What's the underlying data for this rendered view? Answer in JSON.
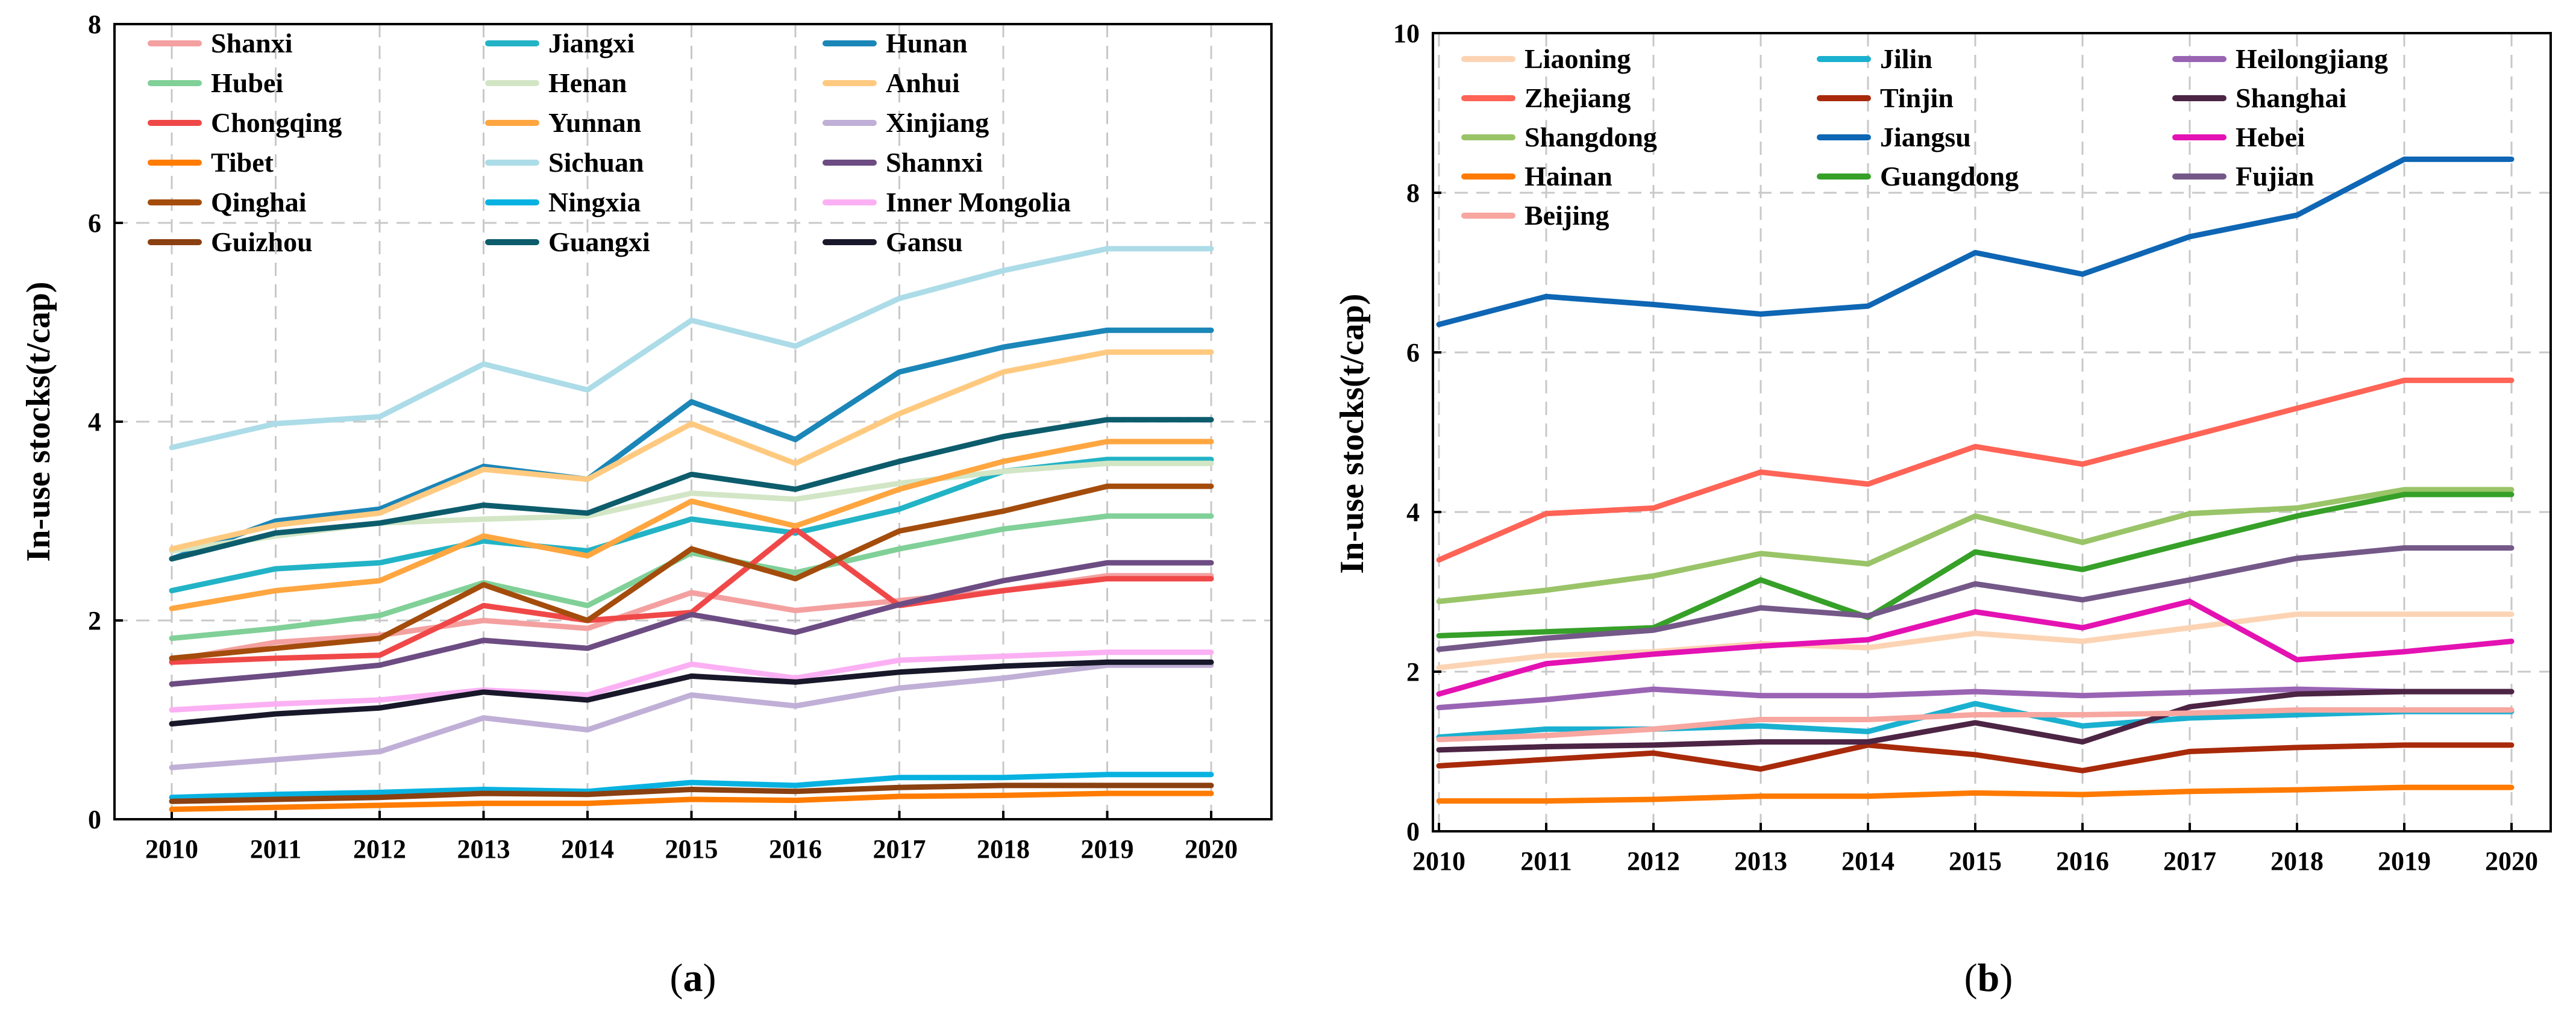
{
  "charts": [
    {
      "id": "a",
      "panel_label": "a",
      "ylabel": "In-use stocks(t/cap)",
      "ylim": [
        0,
        8
      ],
      "yticks": [
        "0",
        "2",
        "4",
        "6",
        "8"
      ],
      "categories": [
        "2010",
        "2011",
        "2012",
        "2013",
        "2014",
        "2015",
        "2016",
        "2017",
        "2018",
        "2019",
        "2020"
      ]
    },
    {
      "id": "b",
      "panel_label": "b",
      "ylabel": "In-use stocks(t/cap)",
      "ylim": [
        0,
        10
      ],
      "yticks": [
        "0",
        "2",
        "4",
        "6",
        "8",
        "10"
      ],
      "categories": [
        "2010",
        "2011",
        "2012",
        "2013",
        "2014",
        "2015",
        "2016",
        "2017",
        "2018",
        "2019",
        "2020"
      ]
    }
  ],
  "chart_data": [
    {
      "type": "line",
      "title": "",
      "xlabel": "",
      "ylabel": "In-use stocks(t/cap)",
      "ylim": [
        0,
        8
      ],
      "grid": true,
      "legend_position": "top-left",
      "x": [
        2010,
        2011,
        2012,
        2013,
        2014,
        2015,
        2016,
        2017,
        2018,
        2019,
        2020
      ],
      "series": [
        {
          "name": "Shanxi",
          "color": "#f4a0a0",
          "values": [
            1.6,
            1.78,
            1.85,
            2.0,
            1.92,
            2.28,
            2.1,
            2.2,
            2.3,
            2.45,
            2.45
          ]
        },
        {
          "name": "Jiangxi",
          "color": "#22b3c6",
          "values": [
            2.3,
            2.52,
            2.58,
            2.8,
            2.7,
            3.02,
            2.88,
            3.12,
            3.5,
            3.62,
            3.62
          ]
        },
        {
          "name": "Hunan",
          "color": "#1b86b8",
          "values": [
            2.62,
            3.0,
            3.12,
            3.55,
            3.42,
            4.2,
            3.82,
            4.5,
            4.75,
            4.92,
            4.92
          ]
        },
        {
          "name": "Hubei",
          "color": "#80d098",
          "values": [
            1.82,
            1.92,
            2.05,
            2.38,
            2.15,
            2.68,
            2.48,
            2.72,
            2.92,
            3.05,
            3.05
          ]
        },
        {
          "name": "Henan",
          "color": "#d2e6c6",
          "values": [
            2.7,
            2.85,
            2.98,
            3.02,
            3.05,
            3.28,
            3.22,
            3.38,
            3.5,
            3.58,
            3.58
          ]
        },
        {
          "name": "Anhui",
          "color": "#ffca80",
          "values": [
            2.72,
            2.96,
            3.08,
            3.52,
            3.42,
            3.98,
            3.58,
            4.08,
            4.5,
            4.7,
            4.7
          ]
        },
        {
          "name": "Chongqing",
          "color": "#f04848",
          "values": [
            1.58,
            1.62,
            1.65,
            2.15,
            2.0,
            2.08,
            2.92,
            2.15,
            2.3,
            2.42,
            2.42
          ]
        },
        {
          "name": "Yunnan",
          "color": "#ffa640",
          "values": [
            2.12,
            2.3,
            2.4,
            2.85,
            2.65,
            3.2,
            2.95,
            3.32,
            3.6,
            3.8,
            3.8
          ]
        },
        {
          "name": "Xinjiang",
          "color": "#c0afd6",
          "values": [
            0.52,
            0.6,
            0.68,
            1.02,
            0.9,
            1.25,
            1.14,
            1.32,
            1.42,
            1.55,
            1.55
          ]
        },
        {
          "name": "Tibet",
          "color": "#ff7c00",
          "values": [
            0.1,
            0.12,
            0.14,
            0.16,
            0.16,
            0.2,
            0.19,
            0.23,
            0.24,
            0.26,
            0.26
          ]
        },
        {
          "name": "Sichuan",
          "color": "#acdce8",
          "values": [
            3.74,
            3.98,
            4.05,
            4.58,
            4.32,
            5.02,
            4.76,
            5.24,
            5.52,
            5.74,
            5.74
          ]
        },
        {
          "name": "Shannxi",
          "color": "#6c4c82",
          "values": [
            1.36,
            1.45,
            1.55,
            1.8,
            1.72,
            2.06,
            1.88,
            2.16,
            2.4,
            2.58,
            2.58
          ]
        },
        {
          "name": "Qinghai",
          "color": "#a44c0c",
          "values": [
            1.62,
            1.72,
            1.82,
            2.36,
            2.0,
            2.72,
            2.42,
            2.9,
            3.1,
            3.35,
            3.35
          ]
        },
        {
          "name": "Ningxia",
          "color": "#08b2e0",
          "values": [
            0.22,
            0.25,
            0.27,
            0.3,
            0.28,
            0.37,
            0.34,
            0.42,
            0.42,
            0.45,
            0.45
          ]
        },
        {
          "name": "Inner Mongolia",
          "color": "#fcb0f4",
          "values": [
            1.1,
            1.16,
            1.2,
            1.3,
            1.25,
            1.56,
            1.42,
            1.6,
            1.64,
            1.68,
            1.68
          ]
        },
        {
          "name": "Guizhou",
          "color": "#8a4010",
          "values": [
            0.18,
            0.2,
            0.22,
            0.26,
            0.25,
            0.3,
            0.28,
            0.32,
            0.34,
            0.34,
            0.34
          ]
        },
        {
          "name": "Guangxi",
          "color": "#0c5c6c",
          "values": [
            2.62,
            2.88,
            2.98,
            3.16,
            3.08,
            3.47,
            3.32,
            3.6,
            3.85,
            4.02,
            4.02
          ]
        },
        {
          "name": "Gansu",
          "color": "#18182a",
          "values": [
            0.96,
            1.06,
            1.12,
            1.28,
            1.2,
            1.44,
            1.38,
            1.48,
            1.54,
            1.58,
            1.58
          ]
        }
      ]
    },
    {
      "type": "line",
      "title": "",
      "xlabel": "",
      "ylabel": "In-use stocks(t/cap)",
      "ylim": [
        0,
        10
      ],
      "grid": true,
      "legend_position": "top-left",
      "x": [
        2010,
        2011,
        2012,
        2013,
        2014,
        2015,
        2016,
        2017,
        2018,
        2019,
        2020
      ],
      "series": [
        {
          "name": "Liaoning",
          "color": "#fcd4b4",
          "values": [
            2.05,
            2.2,
            2.25,
            2.35,
            2.3,
            2.48,
            2.38,
            2.55,
            2.72,
            2.72,
            2.72
          ]
        },
        {
          "name": "Jilin",
          "color": "#1ab0d0",
          "values": [
            1.18,
            1.28,
            1.28,
            1.32,
            1.25,
            1.6,
            1.32,
            1.42,
            1.46,
            1.5,
            1.5
          ]
        },
        {
          "name": "Heilongjiang",
          "color": "#9a64b4",
          "values": [
            1.55,
            1.65,
            1.78,
            1.7,
            1.7,
            1.75,
            1.7,
            1.74,
            1.78,
            1.75,
            1.75
          ]
        },
        {
          "name": "Zhejiang",
          "color": "#ff6456",
          "values": [
            3.4,
            3.98,
            4.05,
            4.5,
            4.35,
            4.82,
            4.6,
            4.95,
            5.3,
            5.65,
            5.65
          ]
        },
        {
          "name": "Tinjin",
          "color": "#a82a0a",
          "values": [
            0.82,
            0.9,
            0.98,
            0.78,
            1.08,
            0.96,
            0.76,
            1.0,
            1.05,
            1.08,
            1.08
          ]
        },
        {
          "name": "Shanghai",
          "color": "#4c2444",
          "values": [
            1.02,
            1.06,
            1.08,
            1.12,
            1.12,
            1.36,
            1.12,
            1.56,
            1.72,
            1.75,
            1.75
          ]
        },
        {
          "name": "Shangdong",
          "color": "#9ac468",
          "values": [
            2.88,
            3.02,
            3.2,
            3.48,
            3.35,
            3.95,
            3.62,
            3.98,
            4.05,
            4.28,
            4.28
          ]
        },
        {
          "name": "Jiangsu",
          "color": "#0e66b4",
          "values": [
            6.35,
            6.7,
            6.6,
            6.48,
            6.58,
            7.25,
            6.98,
            7.45,
            7.72,
            8.42,
            8.42
          ]
        },
        {
          "name": "Hebei",
          "color": "#e412b2",
          "values": [
            1.72,
            2.1,
            2.22,
            2.32,
            2.4,
            2.75,
            2.55,
            2.88,
            2.15,
            2.25,
            2.38
          ]
        },
        {
          "name": "Hainan",
          "color": "#ff7a00",
          "values": [
            0.38,
            0.38,
            0.4,
            0.44,
            0.44,
            0.48,
            0.46,
            0.5,
            0.52,
            0.55,
            0.55
          ]
        },
        {
          "name": "Guangdong",
          "color": "#36a028",
          "values": [
            2.45,
            2.5,
            2.55,
            3.15,
            2.68,
            3.5,
            3.28,
            3.62,
            3.95,
            4.22,
            4.22
          ]
        },
        {
          "name": "Fujian",
          "color": "#745888",
          "values": [
            2.28,
            2.42,
            2.52,
            2.8,
            2.7,
            3.1,
            2.9,
            3.15,
            3.42,
            3.55,
            3.55
          ]
        },
        {
          "name": "Beijing",
          "color": "#f7a6a0",
          "values": [
            1.15,
            1.2,
            1.28,
            1.4,
            1.4,
            1.46,
            1.46,
            1.48,
            1.52,
            1.52,
            1.52
          ]
        }
      ]
    }
  ]
}
